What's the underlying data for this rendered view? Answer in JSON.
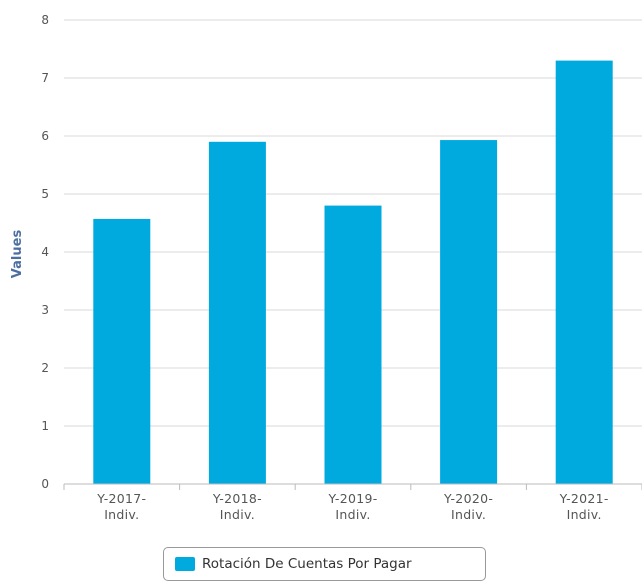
{
  "chart_data": {
    "type": "bar",
    "categories": [
      "Y-2017-Indiv.",
      "Y-2018-Indiv.",
      "Y-2019-Indiv.",
      "Y-2020-Indiv.",
      "Y-2021-Indiv."
    ],
    "category_tick_lines": [
      [
        "Y-2017-",
        "Indiv."
      ],
      [
        "Y-2018-",
        "Indiv."
      ],
      [
        "Y-2019-",
        "Indiv."
      ],
      [
        "Y-2020-",
        "Indiv."
      ],
      [
        "Y-2021-",
        "Indiv."
      ]
    ],
    "series": [
      {
        "name": "Rotación De Cuentas Por Pagar",
        "values": [
          4.57,
          5.9,
          4.8,
          5.93,
          7.3
        ]
      }
    ],
    "ylabel": "Values",
    "ylim": [
      0,
      8
    ],
    "yticks": [
      0,
      1,
      2,
      3,
      4,
      5,
      6,
      7,
      8
    ],
    "grid": true,
    "legend_position": "bottom-center",
    "colors": {
      "bar": "#00aadf",
      "grid": "#d8d8d8",
      "axis": "#bbbbbb"
    }
  }
}
